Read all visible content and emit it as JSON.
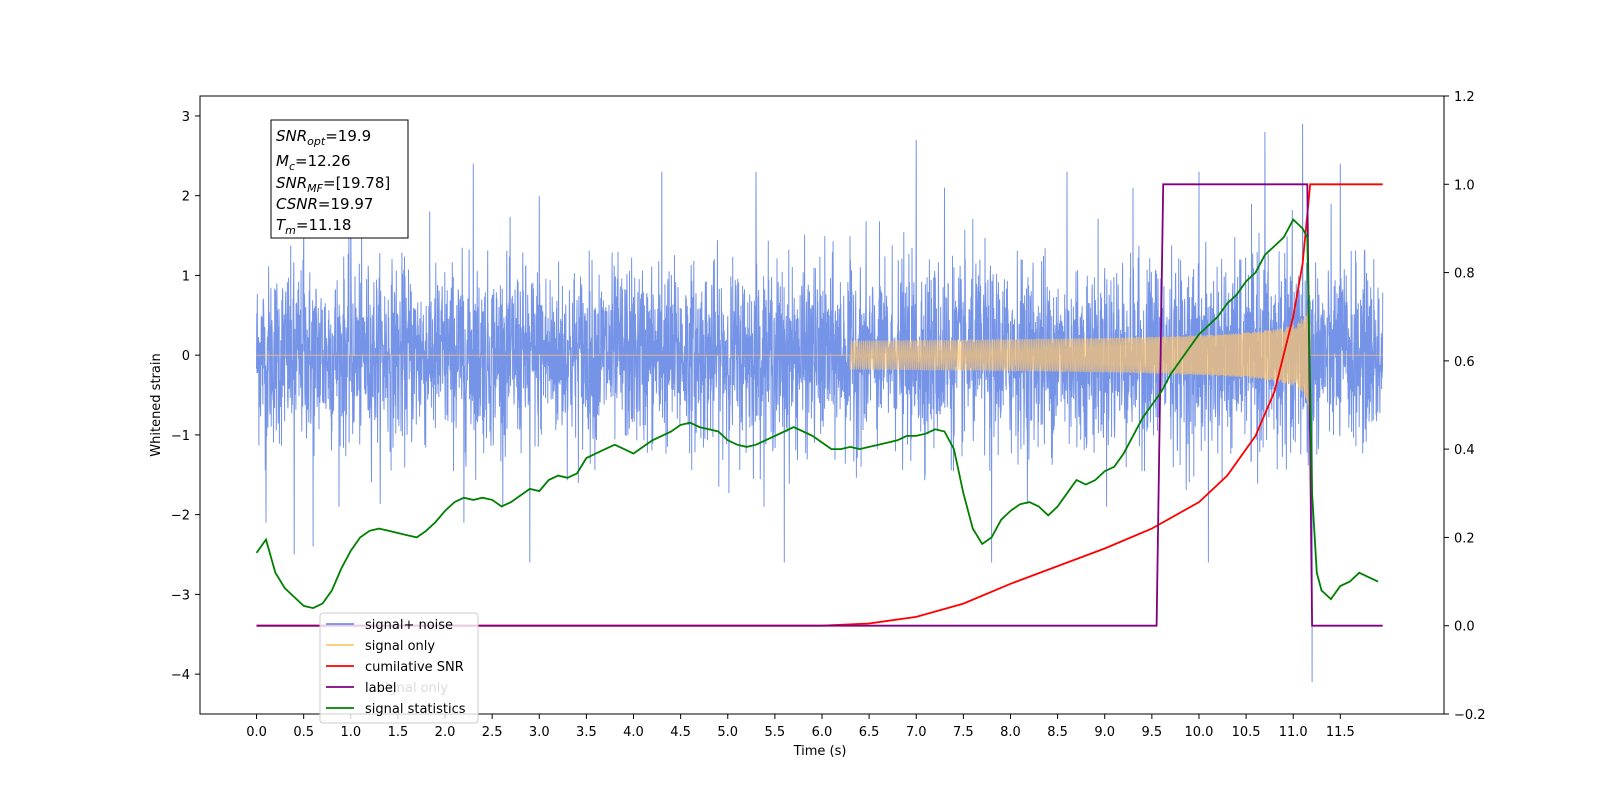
{
  "chart_data": {
    "type": "line",
    "title": "",
    "xlabel": "Time (s)",
    "ylabel": "Whitened strain",
    "ylabel_right": "",
    "xlim": [
      -0.6,
      12.6
    ],
    "ylim": [
      -4.5,
      3.25
    ],
    "ylim_right": [
      -0.2,
      1.2
    ],
    "x_ticks": [
      "0.0",
      "0.5",
      "1.0",
      "1.5",
      "2.0",
      "2.5",
      "3.0",
      "3.5",
      "4.0",
      "4.5",
      "5.0",
      "5.5",
      "6.0",
      "6.5",
      "7.0",
      "7.5",
      "8.0",
      "8.5",
      "9.0",
      "9.5",
      "10.0",
      "10.5",
      "11.0",
      "11.5"
    ],
    "y_ticks": [
      "3",
      "2",
      "1",
      "0",
      "−1",
      "−2",
      "−3",
      "−4"
    ],
    "y_ticks_right": [
      "1.2",
      "1.0",
      "0.8",
      "0.6",
      "0.4",
      "0.2",
      "0.0",
      "−0.2"
    ],
    "grid": false,
    "legend_position": "lower-left",
    "annotation": {
      "snr_opt_label": "SNR",
      "snr_opt_sub": "opt",
      "snr_opt_value": "=19.9",
      "mc_label": "M",
      "mc_sub": "c",
      "mc_value": "=12.26",
      "snr_mf_label": "SNR",
      "snr_mf_sub": "MF",
      "snr_mf_value": "=[19.78]",
      "csnr_label": "CSNR",
      "csnr_value": "=19.97",
      "tm_label": "T",
      "tm_sub": "m",
      "tm_value": "=11.18"
    },
    "series": [
      {
        "name": "signal+ noise",
        "axis": "left",
        "color": "#6f8ee6",
        "noise_sigma": 0.55,
        "upper_peaks_x": [
          0.5,
          1.0,
          2.3,
          3.0,
          4.3,
          5.3,
          7.0,
          7.3,
          8.6,
          9.3,
          10.0,
          10.7,
          11.1,
          11.2,
          11.5
        ],
        "upper_peaks_y": [
          2.0,
          2.0,
          2.4,
          2.0,
          2.3,
          2.3,
          2.7,
          2.1,
          2.3,
          2.1,
          2.3,
          2.8,
          2.9,
          2.6,
          2.4
        ],
        "lower_peaks_x": [
          0.1,
          0.4,
          0.6,
          2.2,
          2.9,
          5.6,
          7.8,
          10.1,
          11.2
        ],
        "lower_peaks_y": [
          -2.1,
          -2.5,
          -2.4,
          -2.1,
          -2.6,
          -2.6,
          -2.6,
          -2.6,
          -4.1
        ]
      },
      {
        "name": "signal only",
        "axis": "left",
        "color": "#ffc66e",
        "chirp_start": 6.3,
        "merger_time": 11.18,
        "peak_amplitude": 1.0
      },
      {
        "name": "cumilative SNR",
        "axis": "right",
        "color": "#ff0000",
        "x": [
          0.0,
          6.0,
          6.5,
          7.0,
          7.5,
          8.0,
          8.5,
          9.0,
          9.5,
          10.0,
          10.3,
          10.6,
          10.8,
          11.0,
          11.1,
          11.18,
          11.2,
          11.3,
          11.5,
          11.95
        ],
        "y": [
          0.0,
          0.0,
          0.005,
          0.02,
          0.05,
          0.095,
          0.135,
          0.175,
          0.22,
          0.28,
          0.34,
          0.43,
          0.53,
          0.7,
          0.82,
          1.0,
          1.0,
          1.0,
          1.0,
          1.0
        ]
      },
      {
        "name": "label",
        "axis": "right",
        "color": "#800080",
        "x": [
          0.0,
          9.55,
          9.62,
          11.15,
          11.2,
          11.95
        ],
        "y": [
          0.0,
          0.0,
          1.0,
          1.0,
          0.0,
          0.0
        ]
      },
      {
        "name": "signal statistics",
        "axis": "right",
        "color": "#008000",
        "x": [
          0.0,
          0.1,
          0.2,
          0.3,
          0.4,
          0.5,
          0.6,
          0.7,
          0.8,
          0.9,
          1.0,
          1.1,
          1.2,
          1.3,
          1.4,
          1.5,
          1.6,
          1.7,
          1.8,
          1.9,
          2.0,
          2.1,
          2.2,
          2.3,
          2.4,
          2.5,
          2.6,
          2.7,
          2.8,
          2.9,
          3.0,
          3.1,
          3.2,
          3.3,
          3.4,
          3.5,
          3.6,
          3.7,
          3.8,
          3.9,
          4.0,
          4.1,
          4.2,
          4.3,
          4.4,
          4.5,
          4.6,
          4.7,
          4.8,
          4.9,
          5.0,
          5.1,
          5.2,
          5.3,
          5.4,
          5.5,
          5.6,
          5.7,
          5.8,
          5.9,
          6.0,
          6.1,
          6.2,
          6.3,
          6.4,
          6.5,
          6.6,
          6.7,
          6.8,
          6.9,
          7.0,
          7.1,
          7.2,
          7.3,
          7.4,
          7.5,
          7.6,
          7.7,
          7.8,
          7.9,
          8.0,
          8.1,
          8.2,
          8.3,
          8.4,
          8.5,
          8.6,
          8.7,
          8.8,
          8.9,
          9.0,
          9.1,
          9.2,
          9.3,
          9.4,
          9.5,
          9.6,
          9.7,
          9.8,
          9.9,
          10.0,
          10.1,
          10.2,
          10.3,
          10.4,
          10.5,
          10.6,
          10.7,
          10.8,
          10.9,
          11.0,
          11.1,
          11.15,
          11.2,
          11.25,
          11.3,
          11.4,
          11.5,
          11.6,
          11.7,
          11.8,
          11.9
        ],
        "y": [
          0.165,
          0.195,
          0.12,
          0.085,
          0.065,
          0.045,
          0.04,
          0.05,
          0.08,
          0.13,
          0.17,
          0.2,
          0.215,
          0.22,
          0.215,
          0.21,
          0.205,
          0.2,
          0.215,
          0.235,
          0.26,
          0.28,
          0.29,
          0.285,
          0.29,
          0.285,
          0.27,
          0.28,
          0.295,
          0.31,
          0.305,
          0.33,
          0.34,
          0.335,
          0.345,
          0.38,
          0.39,
          0.4,
          0.41,
          0.4,
          0.39,
          0.405,
          0.42,
          0.43,
          0.44,
          0.455,
          0.46,
          0.45,
          0.445,
          0.44,
          0.42,
          0.41,
          0.405,
          0.41,
          0.42,
          0.43,
          0.44,
          0.45,
          0.44,
          0.43,
          0.415,
          0.4,
          0.4,
          0.405,
          0.4,
          0.405,
          0.41,
          0.415,
          0.42,
          0.43,
          0.43,
          0.435,
          0.445,
          0.44,
          0.4,
          0.3,
          0.22,
          0.185,
          0.2,
          0.24,
          0.26,
          0.275,
          0.28,
          0.27,
          0.25,
          0.27,
          0.3,
          0.33,
          0.32,
          0.33,
          0.35,
          0.36,
          0.39,
          0.43,
          0.47,
          0.5,
          0.53,
          0.57,
          0.6,
          0.63,
          0.66,
          0.68,
          0.7,
          0.73,
          0.75,
          0.78,
          0.8,
          0.84,
          0.86,
          0.88,
          0.92,
          0.9,
          0.88,
          0.3,
          0.12,
          0.08,
          0.06,
          0.09,
          0.1,
          0.12,
          0.11,
          0.1
        ]
      }
    ],
    "legend_overlap_text": "signal only"
  }
}
